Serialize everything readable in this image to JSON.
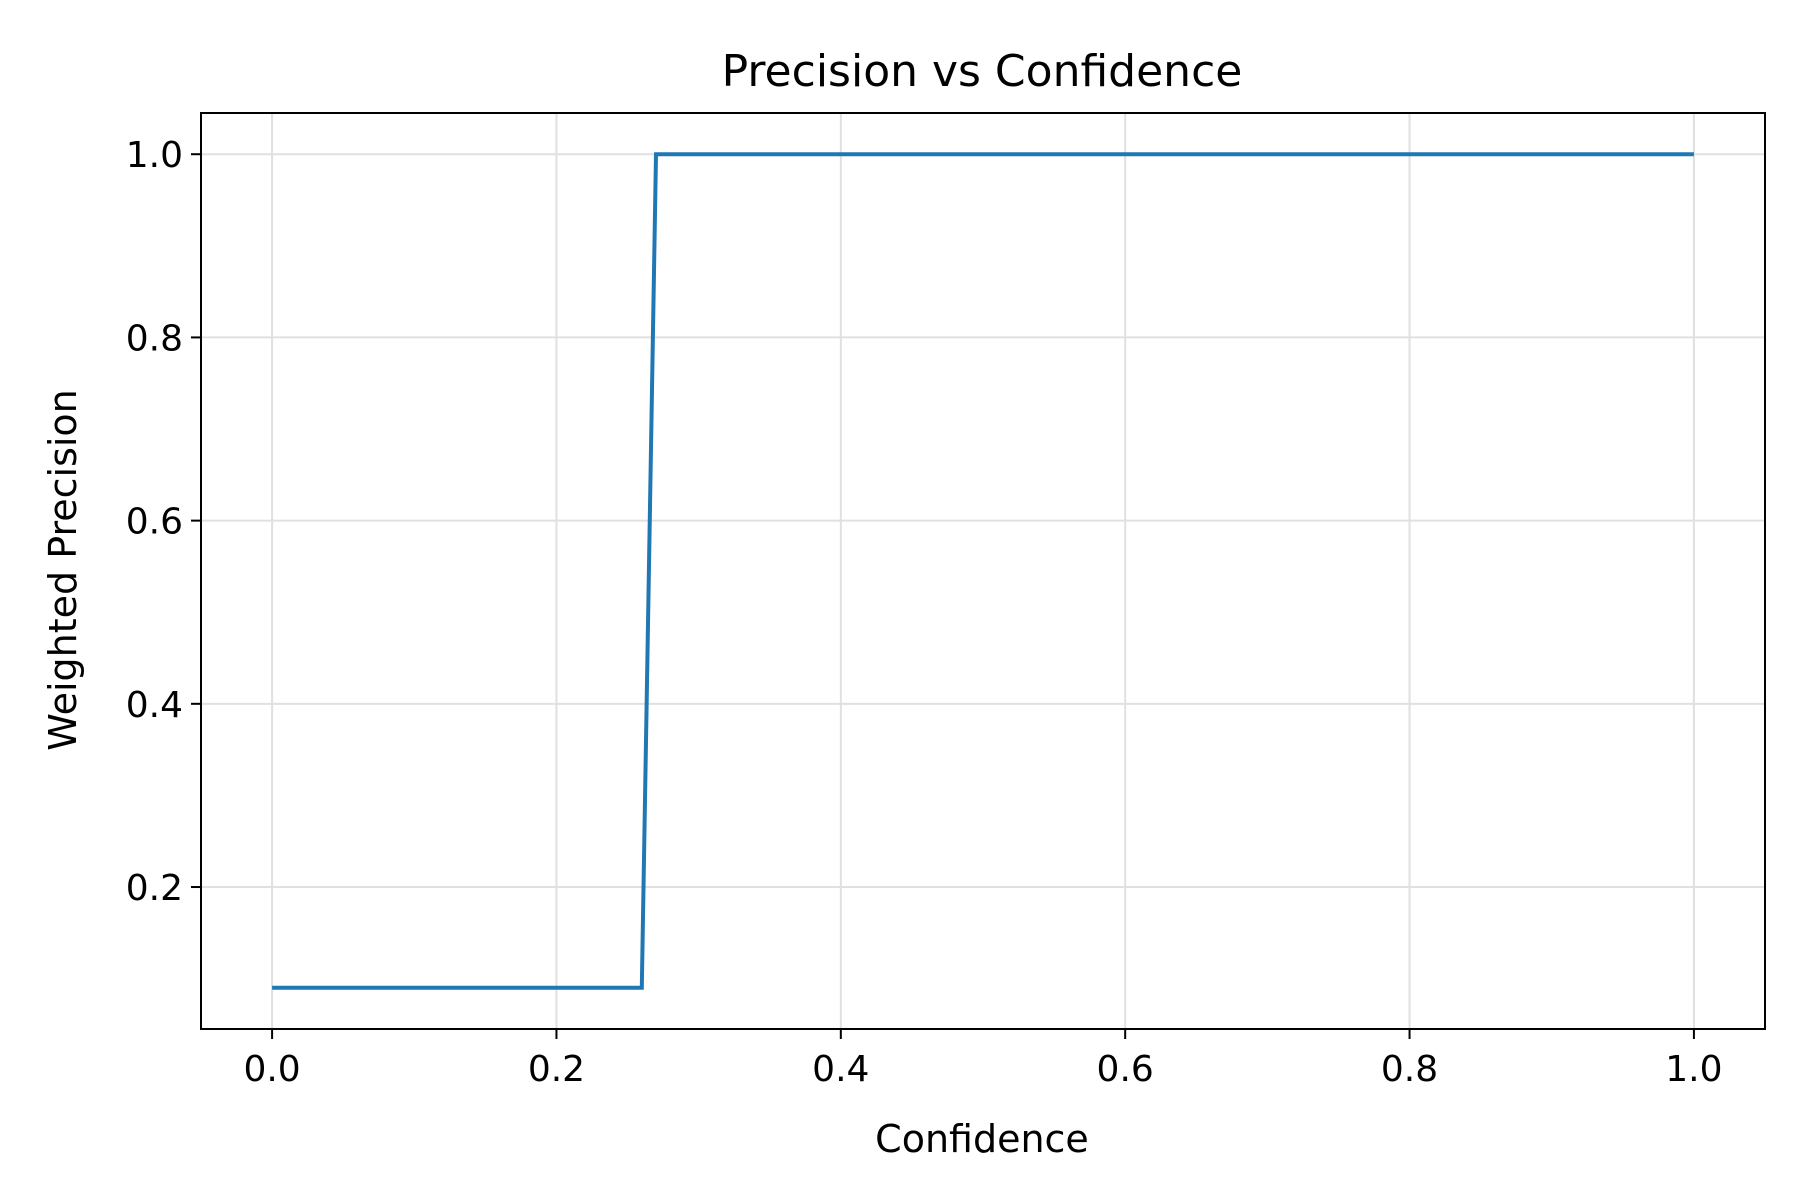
{
  "chart_data": {
    "type": "line",
    "title": "Precision vs Confidence",
    "xlabel": "Confidence",
    "ylabel": "Weighted Precision",
    "xlim": [
      -0.05,
      1.05
    ],
    "ylim": [
      0.045,
      1.045
    ],
    "xticks": [
      0.0,
      0.2,
      0.4,
      0.6,
      0.8,
      1.0
    ],
    "xtick_labels": [
      "0.0",
      "0.2",
      "0.4",
      "0.6",
      "0.8",
      "1.0"
    ],
    "yticks": [
      0.2,
      0.4,
      0.6,
      0.8,
      1.0
    ],
    "ytick_labels": [
      "0.2",
      "0.4",
      "0.6",
      "0.8",
      "1.0"
    ],
    "grid": true,
    "series": [
      {
        "color": "#1f77b4",
        "x": [
          0.0,
          0.26,
          0.27,
          1.0
        ],
        "y": [
          0.09,
          0.09,
          1.0,
          1.0
        ]
      }
    ]
  }
}
